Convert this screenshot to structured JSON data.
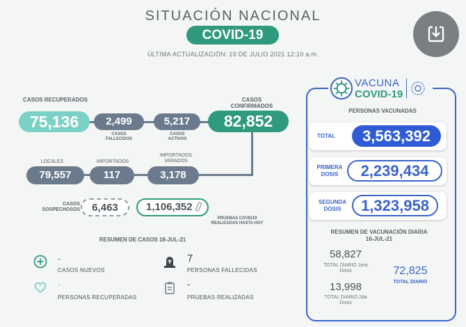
{
  "header": {
    "title": "SITUACIÓN NACIONAL",
    "subtitle": "COVID-19",
    "updated": "ÚLTIMA ACTUALIZACIÓN: 19 DE JULIO 2021 12:10 a.m.",
    "download_icon": "download-icon"
  },
  "cases": {
    "recuperados": {
      "label": "CASOS RECUPERADOS",
      "value": "75,136"
    },
    "fallecidos": {
      "label": "CASOS FALLECIDOS",
      "value": "2,499"
    },
    "activos": {
      "label": "CASOS ACTIVOS",
      "value": "5,217"
    },
    "confirmados": {
      "label": "CASOS CONFIRMADOS",
      "value": "82,852"
    },
    "locales": {
      "label": "LOCALES",
      "value": "79,557"
    },
    "importados": {
      "label": "IMPORTADOS",
      "value": "117"
    },
    "importados_varados": {
      "label": "IMPORTADOS VARADOS",
      "value": "3,178"
    },
    "sospechosos": {
      "label": "CASOS SOSPECHOSOS",
      "value": "6,463"
    },
    "pruebas": {
      "label": "PRUEBAS COVID19 REALIZADAS HASTA HOY",
      "value": "1,106,352"
    }
  },
  "resumen": {
    "title": "RESUMEN DE CASOS 18-JUL-21",
    "items": [
      {
        "icon": "plus-circle-icon",
        "value": "-",
        "label": "CASOS NUEVOS"
      },
      {
        "icon": "heart-icon",
        "value": "-",
        "label": "PERSONAS RECUPERADAS"
      },
      {
        "icon": "tombstone-icon",
        "value": "7",
        "label": "PERSONAS FALLECIDAS"
      },
      {
        "icon": "clipboard-icon",
        "value": "-",
        "label": "PRUEBAS REALIZADAS"
      }
    ]
  },
  "vacuna": {
    "logo_line1": "VACUNA",
    "logo_line2": "COVID-19",
    "section_title": "PERSONAS VACUNADAS",
    "total": {
      "label": "TOTAL",
      "value": "3,563,392"
    },
    "primera": {
      "label": "PRIMERA DOSIS",
      "value": "2,239,434"
    },
    "segunda": {
      "label": "SEGUNDA DOSIS",
      "value": "1,323,958"
    },
    "resumen_title": "RESUMEN DE VACUNACIÓN DIARIA 16-JUL-21",
    "diaria": {
      "primera_value": "58,827",
      "primera_label": "TOTAL DIARIO 1era Dosis",
      "segunda_value": "13,998",
      "segunda_label": "TOTAL DIARIO 2da Dosis",
      "total_value": "72,825",
      "total_label": "TOTAL DIARIO"
    }
  },
  "colors": {
    "green": "#2f9a7e",
    "light_green": "#7bd1c5",
    "slate": "#6b7b8d",
    "blue": "#3a63c9"
  }
}
